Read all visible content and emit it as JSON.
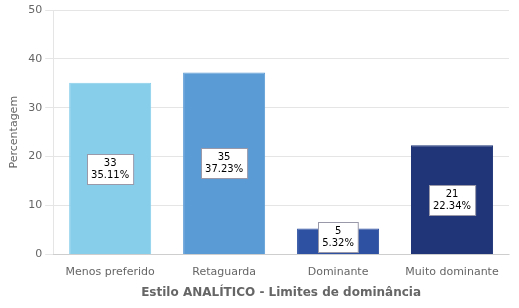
{
  "chart_data": {
    "type": "bar",
    "categories": [
      "Menos preferido",
      "Retaguarda",
      "Dominante",
      "Muito dominante"
    ],
    "values": [
      35.11,
      37.23,
      5.32,
      22.34
    ],
    "value_labels": [
      "35.11%",
      "37.23%",
      "5.32%",
      "22.34%"
    ],
    "counts": [
      33,
      35,
      5,
      21
    ],
    "colors": [
      "#87ceeb",
      "#5b9bd5",
      "#2e51a2",
      "#1f3578"
    ],
    "xlabel": "Estilo ANALÍTICO - Limites de dominância",
    "ylabel": "Percentagem",
    "ylim": [
      0,
      50
    ],
    "yticks": [
      0,
      10,
      20,
      30,
      40,
      50
    ],
    "grid": true,
    "data_labels": true
  }
}
